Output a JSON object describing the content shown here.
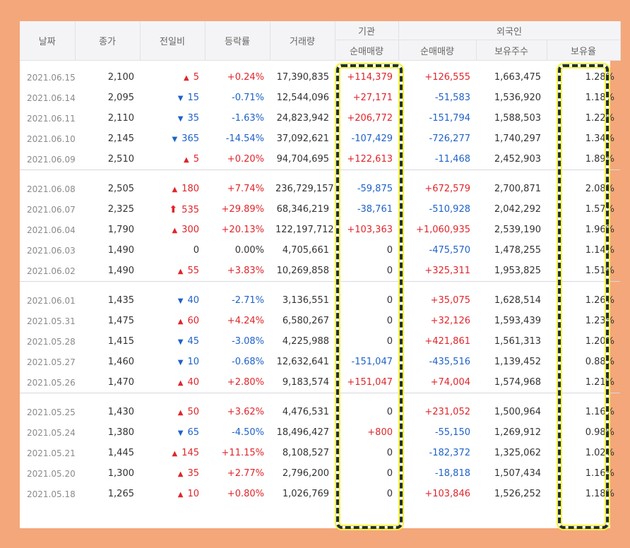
{
  "headers": {
    "date": "날짜",
    "close": "종가",
    "change": "전일비",
    "rate": "등락률",
    "volume": "거래량",
    "inst_group": "기관",
    "foreign_group": "외국인",
    "inst_net": "순매매량",
    "foreign_net": "순매매량",
    "foreign_hold": "보유주수",
    "foreign_ratio": "보유율"
  },
  "groups": [
    [
      {
        "date": "2021.06.15",
        "close": "2,100",
        "dir": "up",
        "change": "5",
        "rate": "+0.24%",
        "volume": "17,390,835",
        "inst": "+114,379",
        "foreign": "+126,555",
        "hold": "1,663,475",
        "ratio": "1.28%"
      },
      {
        "date": "2021.06.14",
        "close": "2,095",
        "dir": "down",
        "change": "15",
        "rate": "-0.71%",
        "volume": "12,544,096",
        "inst": "+27,171",
        "foreign": "-51,583",
        "hold": "1,536,920",
        "ratio": "1.18%"
      },
      {
        "date": "2021.06.11",
        "close": "2,110",
        "dir": "down",
        "change": "35",
        "rate": "-1.63%",
        "volume": "24,823,942",
        "inst": "+206,772",
        "foreign": "-151,794",
        "hold": "1,588,503",
        "ratio": "1.22%"
      },
      {
        "date": "2021.06.10",
        "close": "2,145",
        "dir": "down",
        "change": "365",
        "rate": "-14.54%",
        "volume": "37,092,621",
        "inst": "-107,429",
        "foreign": "-726,277",
        "hold": "1,740,297",
        "ratio": "1.34%"
      },
      {
        "date": "2021.06.09",
        "close": "2,510",
        "dir": "up",
        "change": "5",
        "rate": "+0.20%",
        "volume": "94,704,695",
        "inst": "+122,613",
        "foreign": "-11,468",
        "hold": "2,452,903",
        "ratio": "1.89%"
      }
    ],
    [
      {
        "date": "2021.06.08",
        "close": "2,505",
        "dir": "up",
        "change": "180",
        "rate": "+7.74%",
        "volume": "236,729,157",
        "inst": "-59,875",
        "foreign": "+672,579",
        "hold": "2,700,871",
        "ratio": "2.08%"
      },
      {
        "date": "2021.06.07",
        "close": "2,325",
        "dir": "limit-up",
        "change": "535",
        "rate": "+29.89%",
        "volume": "68,346,219",
        "inst": "-38,761",
        "foreign": "-510,928",
        "hold": "2,042,292",
        "ratio": "1.57%"
      },
      {
        "date": "2021.06.04",
        "close": "1,790",
        "dir": "up",
        "change": "300",
        "rate": "+20.13%",
        "volume": "122,197,712",
        "inst": "+103,363",
        "foreign": "+1,060,935",
        "hold": "2,539,190",
        "ratio": "1.96%"
      },
      {
        "date": "2021.06.03",
        "close": "1,490",
        "dir": "flat",
        "change": "0",
        "rate": "0.00%",
        "volume": "4,705,661",
        "inst": "0",
        "foreign": "-475,570",
        "hold": "1,478,255",
        "ratio": "1.14%"
      },
      {
        "date": "2021.06.02",
        "close": "1,490",
        "dir": "up",
        "change": "55",
        "rate": "+3.83%",
        "volume": "10,269,858",
        "inst": "0",
        "foreign": "+325,311",
        "hold": "1,953,825",
        "ratio": "1.51%"
      }
    ],
    [
      {
        "date": "2021.06.01",
        "close": "1,435",
        "dir": "down",
        "change": "40",
        "rate": "-2.71%",
        "volume": "3,136,551",
        "inst": "0",
        "foreign": "+35,075",
        "hold": "1,628,514",
        "ratio": "1.26%"
      },
      {
        "date": "2021.05.31",
        "close": "1,475",
        "dir": "up",
        "change": "60",
        "rate": "+4.24%",
        "volume": "6,580,267",
        "inst": "0",
        "foreign": "+32,126",
        "hold": "1,593,439",
        "ratio": "1.23%"
      },
      {
        "date": "2021.05.28",
        "close": "1,415",
        "dir": "down",
        "change": "45",
        "rate": "-3.08%",
        "volume": "4,225,988",
        "inst": "0",
        "foreign": "+421,861",
        "hold": "1,561,313",
        "ratio": "1.20%"
      },
      {
        "date": "2021.05.27",
        "close": "1,460",
        "dir": "down",
        "change": "10",
        "rate": "-0.68%",
        "volume": "12,632,641",
        "inst": "-151,047",
        "foreign": "-435,516",
        "hold": "1,139,452",
        "ratio": "0.88%"
      },
      {
        "date": "2021.05.26",
        "close": "1,470",
        "dir": "up",
        "change": "40",
        "rate": "+2.80%",
        "volume": "9,183,574",
        "inst": "+151,047",
        "foreign": "+74,004",
        "hold": "1,574,968",
        "ratio": "1.21%"
      }
    ],
    [
      {
        "date": "2021.05.25",
        "close": "1,430",
        "dir": "up",
        "change": "50",
        "rate": "+3.62%",
        "volume": "4,476,531",
        "inst": "0",
        "foreign": "+231,052",
        "hold": "1,500,964",
        "ratio": "1.16%"
      },
      {
        "date": "2021.05.24",
        "close": "1,380",
        "dir": "down",
        "change": "65",
        "rate": "-4.50%",
        "volume": "18,496,427",
        "inst": "+800",
        "foreign": "-55,150",
        "hold": "1,269,912",
        "ratio": "0.98%"
      },
      {
        "date": "2021.05.21",
        "close": "1,445",
        "dir": "up",
        "change": "145",
        "rate": "+11.15%",
        "volume": "8,108,527",
        "inst": "0",
        "foreign": "-182,372",
        "hold": "1,325,062",
        "ratio": "1.02%"
      },
      {
        "date": "2021.05.20",
        "close": "1,300",
        "dir": "up",
        "change": "35",
        "rate": "+2.77%",
        "volume": "2,796,200",
        "inst": "0",
        "foreign": "-18,818",
        "hold": "1,507,434",
        "ratio": "1.16%"
      },
      {
        "date": "2021.05.18",
        "close": "1,265",
        "dir": "up",
        "change": "10",
        "rate": "+0.80%",
        "volume": "1,026,769",
        "inst": "0",
        "foreign": "+103,846",
        "hold": "1,526,252",
        "ratio": "1.18%"
      }
    ]
  ],
  "colors": {
    "up": "#e0252b",
    "down": "#1f62c8",
    "highlight": "#f7f33a"
  }
}
